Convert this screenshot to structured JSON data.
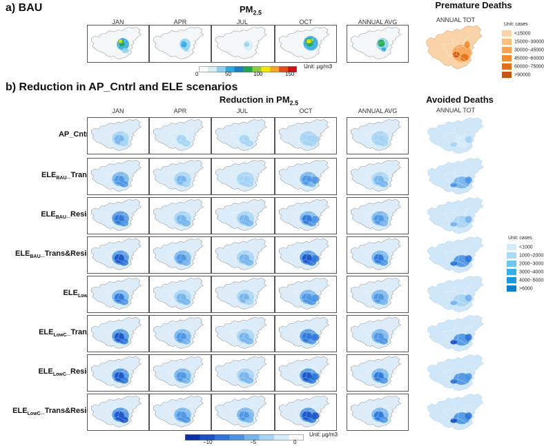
{
  "section_a": {
    "title": "a) BAU",
    "pm_title_main": "PM",
    "pm_title_sub": "2.5",
    "months": [
      "JAN",
      "APR",
      "JUL",
      "OCT"
    ],
    "annual_avg": "ANNUAL AVG",
    "deaths_title": "Premature Deaths",
    "annual_tot": "ANNUAL TOT",
    "colorbar": {
      "ticks": [
        "0",
        "50",
        "100",
        "150"
      ],
      "unit": "Unit: µg/m3",
      "colors": [
        "#ffffff",
        "#d8ecf8",
        "#8fd1ef",
        "#2fa8e0",
        "#1a7fc5",
        "#21a64b",
        "#8ccd3c",
        "#f2e600",
        "#f6a623",
        "#e8491d",
        "#d11014"
      ]
    },
    "legend": {
      "title": "Unit: cases",
      "items": [
        {
          "label": "<15000",
          "color": "#fbd3a8"
        },
        {
          "label": "15000~30000",
          "color": "#fbbd7d"
        },
        {
          "label": "30000~45000",
          "color": "#f9a453"
        },
        {
          "label": "45000~60000",
          "color": "#f38a2f"
        },
        {
          "label": "60000~75000",
          "color": "#e26f1a"
        },
        {
          "label": ">90000",
          "color": "#c4560f"
        }
      ]
    }
  },
  "section_b": {
    "title": "b) Reduction in AP_Cntrl and ELE scenarios",
    "pm_title_main": "Reduction in PM",
    "pm_title_sub": "2.5",
    "months": [
      "JAN",
      "APR",
      "JUL",
      "OCT"
    ],
    "annual_avg": "ANNUAL AVG",
    "deaths_title": "Avoided Deaths",
    "annual_tot": "ANNUAL TOT",
    "rows": [
      {
        "pre": "AP_Cntrl",
        "sub": "",
        "post": ""
      },
      {
        "pre": "ELE",
        "sub": "BAU",
        "post": "_Trans"
      },
      {
        "pre": "ELE",
        "sub": "BAU",
        "post": "_Resid"
      },
      {
        "pre": "ELE",
        "sub": "BAU",
        "post": "_Trans&Resid"
      },
      {
        "pre": "ELE",
        "sub": "LowC",
        "post": ""
      },
      {
        "pre": "ELE",
        "sub": "LowC",
        "post": "_Trans"
      },
      {
        "pre": "ELE",
        "sub": "LowC",
        "post": "_Resid"
      },
      {
        "pre": "ELE",
        "sub": "LowC",
        "post": "_Trans&Resid"
      }
    ],
    "colorbar": {
      "ticks": [
        "−10",
        "−5",
        "0"
      ],
      "unit": "Unit: µg/m3",
      "colors": [
        "#0a2fa6",
        "#1a52c6",
        "#2b74d8",
        "#4a93e3",
        "#74b3ec",
        "#a5d3f4",
        "#d7ecfa",
        "#ffffff"
      ]
    },
    "legend": {
      "title": "Unit: cases",
      "items": [
        {
          "label": "<1000",
          "color": "#d4ebfa"
        },
        {
          "label": "1000~2000",
          "color": "#a8dcf6"
        },
        {
          "label": "2000~3000",
          "color": "#6cc6f1"
        },
        {
          "label": "3000~4000",
          "color": "#35aee9"
        },
        {
          "label": "4000~5000",
          "color": "#1d97dd"
        },
        {
          "label": ">6000",
          "color": "#127fcb"
        }
      ]
    }
  }
}
